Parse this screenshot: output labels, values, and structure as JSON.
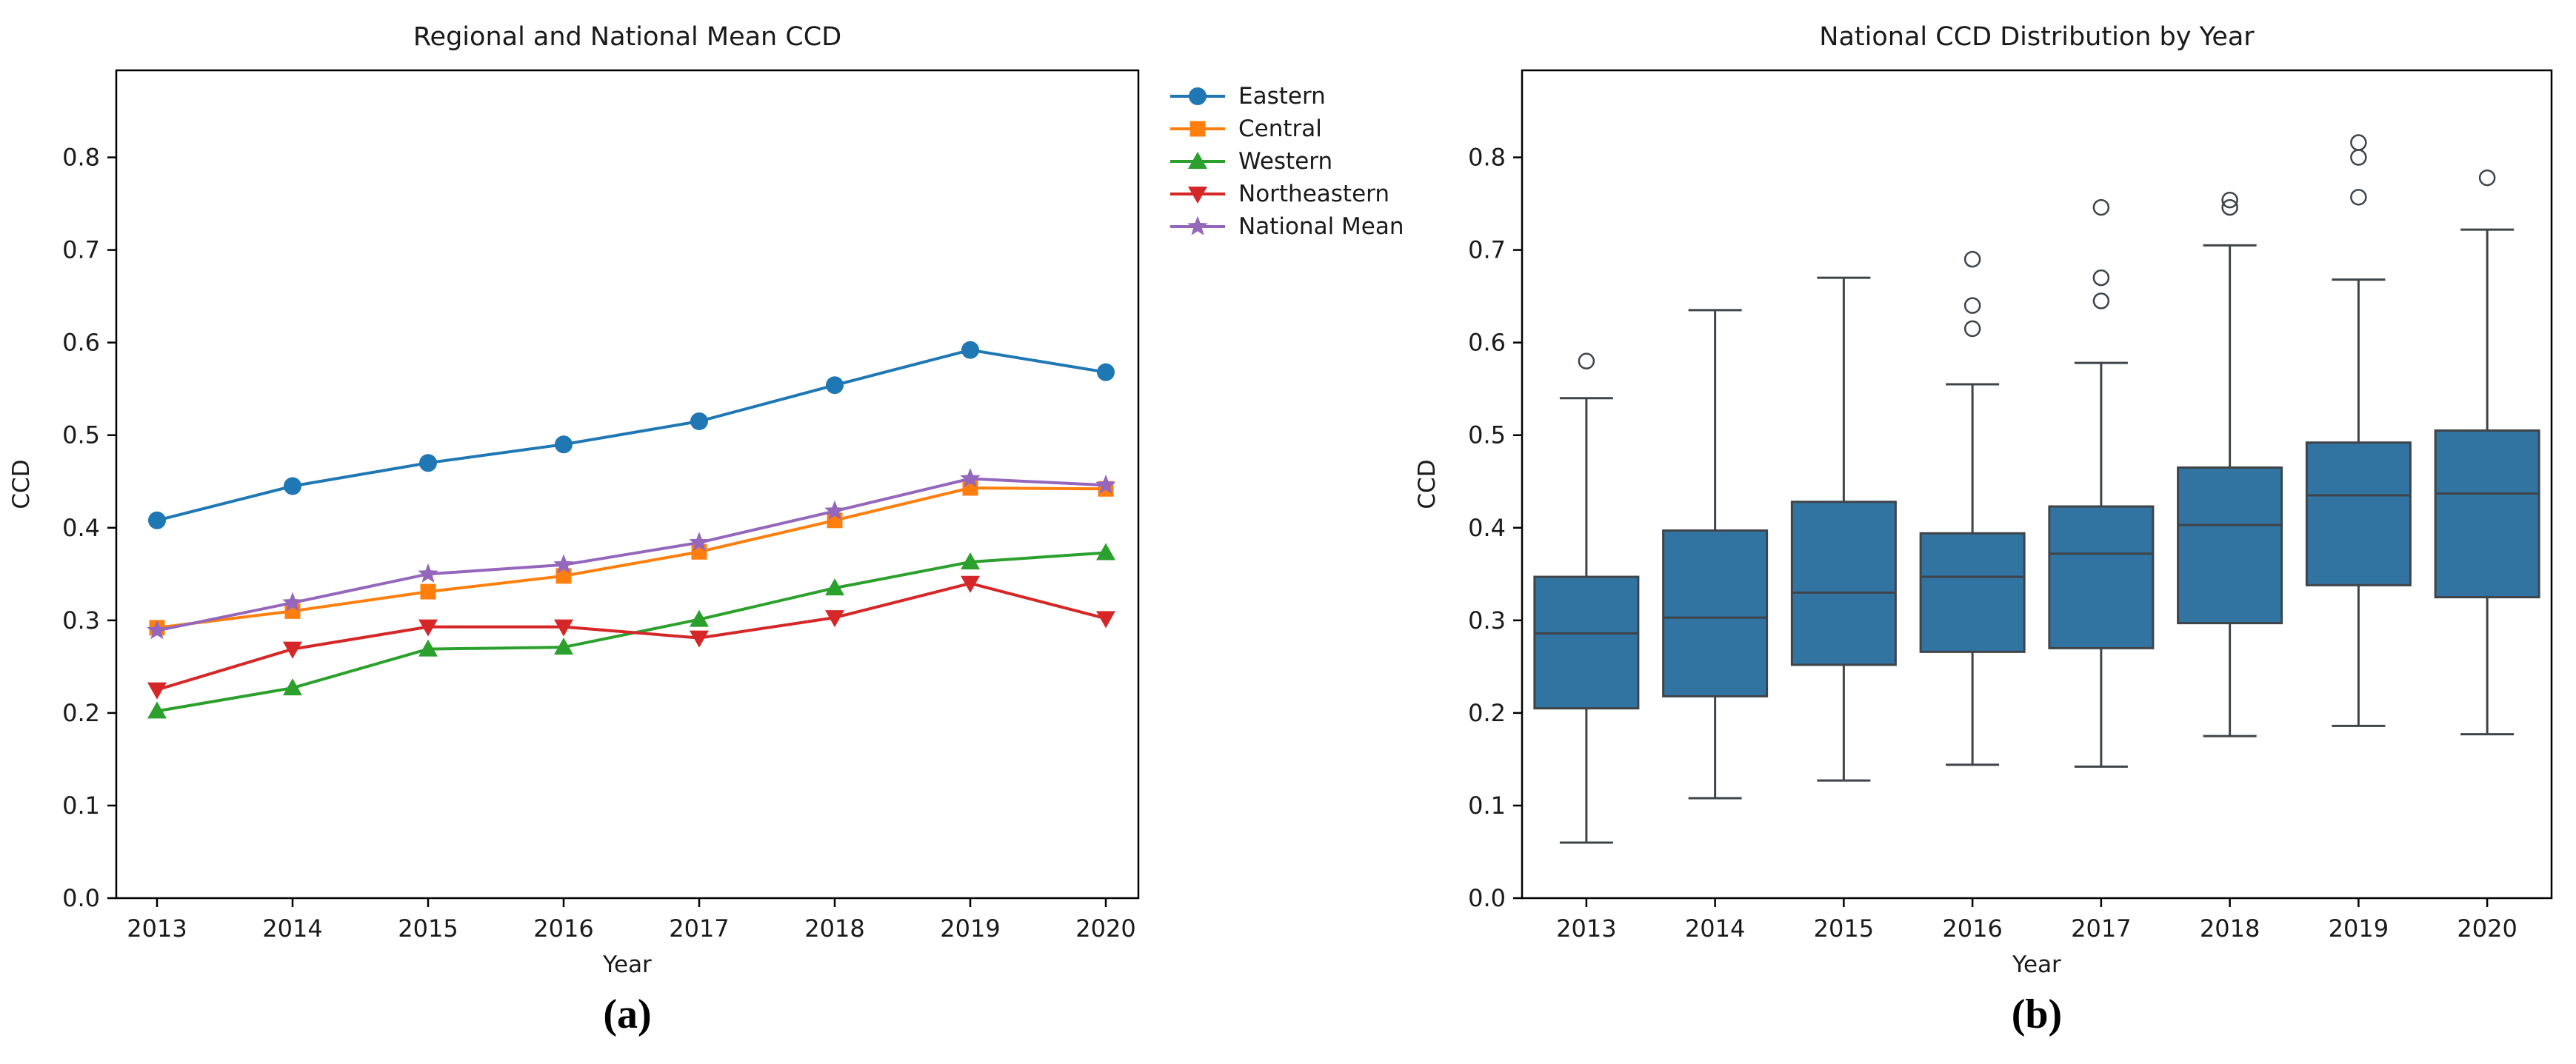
{
  "figure": {
    "background": "#ffffff",
    "caption_a": "(a)",
    "caption_b": "(b)",
    "text_color": "#1a1a1a"
  },
  "chart_data": [
    {
      "id": "line",
      "type": "line",
      "title": "Regional and National Mean CCD",
      "xlabel": "Year",
      "ylabel": "CCD",
      "x": [
        2013,
        2014,
        2015,
        2016,
        2017,
        2018,
        2019,
        2020
      ],
      "ylim": [
        0.0,
        0.894
      ],
      "yticks": [
        "0.0",
        "0.1",
        "0.2",
        "0.3",
        "0.4",
        "0.5",
        "0.6",
        "0.7",
        "0.8"
      ],
      "grid": false,
      "legend_position": "outside-right-top",
      "series": [
        {
          "name": "Eastern",
          "color": "#1f77b4",
          "marker": "circle",
          "values": [
            0.408,
            0.445,
            0.47,
            0.49,
            0.515,
            0.554,
            0.592,
            0.568
          ]
        },
        {
          "name": "Central",
          "color": "#ff7f0e",
          "marker": "square",
          "values": [
            0.292,
            0.31,
            0.331,
            0.348,
            0.374,
            0.408,
            0.443,
            0.442
          ]
        },
        {
          "name": "Western",
          "color": "#2ca02c",
          "marker": "triangle-up",
          "values": [
            0.202,
            0.227,
            0.269,
            0.271,
            0.301,
            0.335,
            0.363,
            0.373
          ]
        },
        {
          "name": "Northeastern",
          "color": "#d62728",
          "marker": "triangle-down",
          "values": [
            0.225,
            0.269,
            0.293,
            0.293,
            0.281,
            0.303,
            0.34,
            0.302
          ]
        },
        {
          "name": "National Mean",
          "color": "#9467bd",
          "marker": "star",
          "values": [
            0.289,
            0.319,
            0.35,
            0.36,
            0.384,
            0.418,
            0.453,
            0.446
          ]
        }
      ]
    },
    {
      "id": "box",
      "type": "box",
      "title": "National CCD Distribution by Year",
      "xlabel": "Year",
      "ylabel": "CCD",
      "categories": [
        "2013",
        "2014",
        "2015",
        "2016",
        "2017",
        "2018",
        "2019",
        "2020"
      ],
      "ylim": [
        0.0,
        0.894
      ],
      "yticks": [
        "0.0",
        "0.1",
        "0.2",
        "0.3",
        "0.4",
        "0.5",
        "0.6",
        "0.7",
        "0.8"
      ],
      "grid": false,
      "box_fill": "#3274a1",
      "box_edge": "#3f4449",
      "boxes": [
        {
          "year": "2013",
          "whislo": 0.06,
          "q1": 0.205,
          "med": 0.286,
          "q3": 0.347,
          "whishi": 0.54,
          "outliers": [
            0.58
          ]
        },
        {
          "year": "2014",
          "whislo": 0.108,
          "q1": 0.218,
          "med": 0.303,
          "q3": 0.397,
          "whishi": 0.635,
          "outliers": []
        },
        {
          "year": "2015",
          "whislo": 0.127,
          "q1": 0.252,
          "med": 0.33,
          "q3": 0.428,
          "whishi": 0.67,
          "outliers": []
        },
        {
          "year": "2016",
          "whislo": 0.144,
          "q1": 0.266,
          "med": 0.347,
          "q3": 0.394,
          "whishi": 0.555,
          "outliers": [
            0.615,
            0.64,
            0.69
          ]
        },
        {
          "year": "2017",
          "whislo": 0.142,
          "q1": 0.27,
          "med": 0.372,
          "q3": 0.423,
          "whishi": 0.578,
          "outliers": [
            0.645,
            0.67,
            0.746
          ]
        },
        {
          "year": "2018",
          "whislo": 0.175,
          "q1": 0.297,
          "med": 0.403,
          "q3": 0.465,
          "whishi": 0.705,
          "outliers": [
            0.746,
            0.754
          ]
        },
        {
          "year": "2019",
          "whislo": 0.186,
          "q1": 0.338,
          "med": 0.435,
          "q3": 0.492,
          "whishi": 0.668,
          "outliers": [
            0.757,
            0.8,
            0.816
          ]
        },
        {
          "year": "2020",
          "whislo": 0.177,
          "q1": 0.325,
          "med": 0.437,
          "q3": 0.505,
          "whishi": 0.722,
          "outliers": [
            0.778
          ]
        }
      ]
    }
  ]
}
